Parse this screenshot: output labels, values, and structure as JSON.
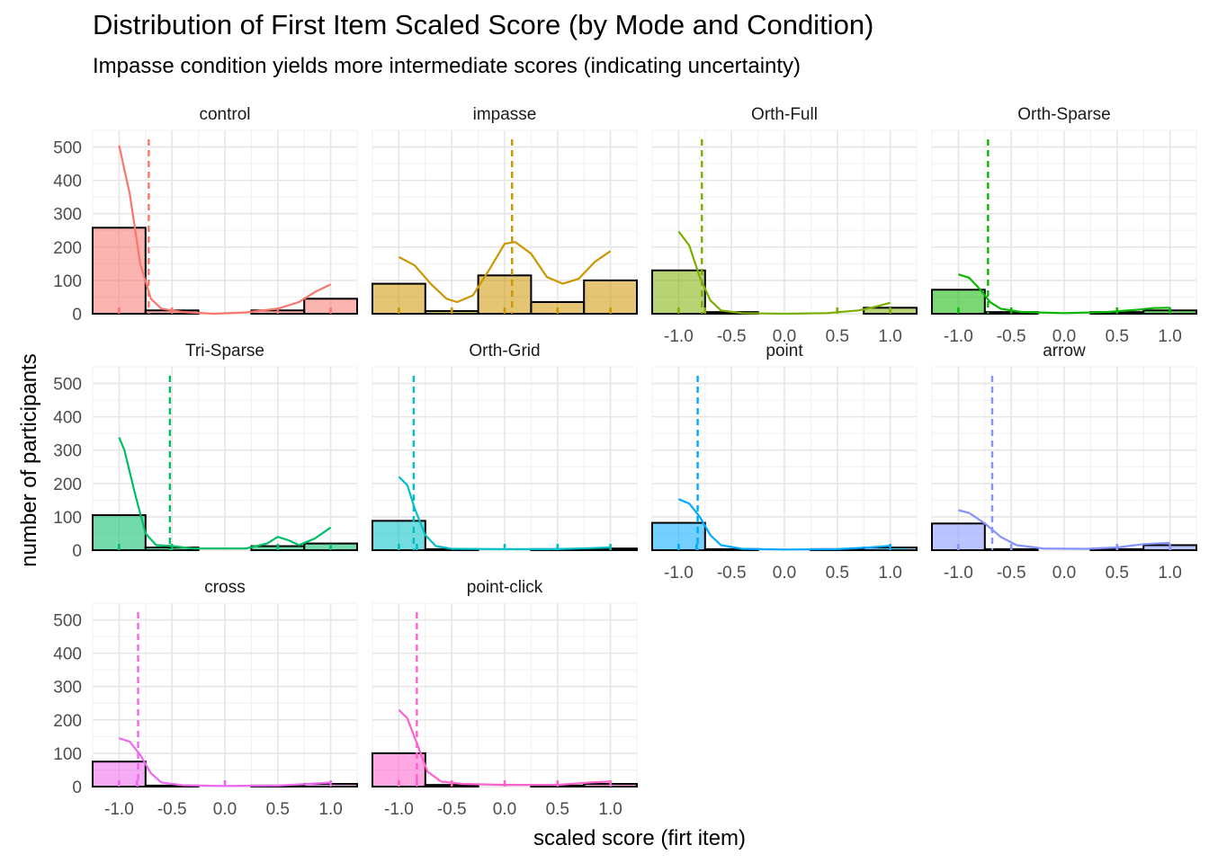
{
  "chart_data": {
    "type": "bar",
    "title": "Distribution of First Item Scaled Score (by Mode and Condition)",
    "subtitle": "Impasse condition yields more intermediate scores (indicating uncertainty)",
    "xlabel": "scaled score (firt item)",
    "ylabel": "number of participants",
    "xlim": [
      -1.25,
      1.25
    ],
    "ylim": [
      0,
      550
    ],
    "x_ticks": [
      -1.0,
      -0.5,
      0.0,
      0.5,
      1.0
    ],
    "x_tick_labels": [
      "-1.0",
      "-0.5",
      "0.0",
      "0.5",
      "1.0"
    ],
    "y_ticks": [
      0,
      100,
      200,
      300,
      400,
      500
    ],
    "y_tick_labels": [
      "0",
      "100",
      "200",
      "300",
      "400",
      "500"
    ],
    "bin_centers": [
      -1.0,
      -0.5,
      0.0,
      0.5,
      1.0
    ],
    "bin_width": 0.5,
    "grid": true,
    "legend": "none",
    "panels": [
      {
        "name": "control",
        "color": "#F8766D",
        "counts": [
          258,
          10,
          0,
          10,
          45
        ],
        "mean": -0.72,
        "density": [
          [
            -1.0,
            505
          ],
          [
            -0.9,
            360
          ],
          [
            -0.8,
            150
          ],
          [
            -0.7,
            45
          ],
          [
            -0.6,
            15
          ],
          [
            -0.4,
            5
          ],
          [
            -0.1,
            0
          ],
          [
            0.2,
            4
          ],
          [
            0.5,
            15
          ],
          [
            0.7,
            35
          ],
          [
            0.85,
            65
          ],
          [
            1.0,
            88
          ]
        ],
        "rug": [
          -1.0,
          -0.5,
          0.5,
          1.0
        ]
      },
      {
        "name": "impasse",
        "color": "#CD9600",
        "counts": [
          90,
          8,
          115,
          35,
          100
        ],
        "mean": 0.07,
        "density": [
          [
            -1.0,
            170
          ],
          [
            -0.85,
            145
          ],
          [
            -0.7,
            90
          ],
          [
            -0.55,
            45
          ],
          [
            -0.45,
            35
          ],
          [
            -0.3,
            55
          ],
          [
            -0.15,
            130
          ],
          [
            0.0,
            210
          ],
          [
            0.1,
            215
          ],
          [
            0.25,
            180
          ],
          [
            0.4,
            110
          ],
          [
            0.55,
            90
          ],
          [
            0.7,
            105
          ],
          [
            0.85,
            155
          ],
          [
            1.0,
            188
          ]
        ],
        "rug": [
          -1.0,
          -0.5,
          0.0,
          0.5,
          1.0
        ]
      },
      {
        "name": "Orth-Full",
        "color": "#7CAE00",
        "counts": [
          130,
          5,
          0,
          0,
          18
        ],
        "mean": -0.78,
        "density": [
          [
            -1.0,
            247
          ],
          [
            -0.9,
            205
          ],
          [
            -0.8,
            110
          ],
          [
            -0.7,
            40
          ],
          [
            -0.6,
            10
          ],
          [
            -0.4,
            2
          ],
          [
            0.0,
            0
          ],
          [
            0.4,
            2
          ],
          [
            0.7,
            10
          ],
          [
            0.85,
            20
          ],
          [
            1.0,
            33
          ]
        ],
        "rug": [
          -1.0,
          -0.75,
          0.5,
          1.0
        ]
      },
      {
        "name": "Orth-Sparse",
        "color": "#0CB702",
        "counts": [
          72,
          5,
          0,
          5,
          10
        ],
        "mean": -0.72,
        "density": [
          [
            -1.0,
            118
          ],
          [
            -0.9,
            108
          ],
          [
            -0.8,
            75
          ],
          [
            -0.7,
            35
          ],
          [
            -0.6,
            15
          ],
          [
            -0.4,
            5
          ],
          [
            0.0,
            2
          ],
          [
            0.4,
            5
          ],
          [
            0.7,
            12
          ],
          [
            0.85,
            17
          ],
          [
            1.0,
            18
          ]
        ],
        "rug": [
          -1.0,
          -0.5,
          0.5,
          1.0
        ]
      },
      {
        "name": "Tri-Sparse",
        "color": "#00BE67",
        "counts": [
          105,
          8,
          0,
          12,
          20
        ],
        "mean": -0.52,
        "density": [
          [
            -1.0,
            338
          ],
          [
            -0.95,
            300
          ],
          [
            -0.85,
            170
          ],
          [
            -0.75,
            50
          ],
          [
            -0.65,
            15
          ],
          [
            -0.5,
            12
          ],
          [
            -0.3,
            5
          ],
          [
            0.0,
            5
          ],
          [
            0.2,
            5
          ],
          [
            0.4,
            20
          ],
          [
            0.5,
            40
          ],
          [
            0.6,
            30
          ],
          [
            0.7,
            15
          ],
          [
            0.85,
            35
          ],
          [
            1.0,
            68
          ]
        ],
        "rug": [
          -1.0,
          -0.5,
          0.5,
          1.0
        ]
      },
      {
        "name": "Orth-Grid",
        "color": "#00BFC4",
        "counts": [
          88,
          3,
          0,
          3,
          5
        ],
        "mean": -0.86,
        "density": [
          [
            -1.0,
            220
          ],
          [
            -0.92,
            195
          ],
          [
            -0.85,
            125
          ],
          [
            -0.75,
            45
          ],
          [
            -0.65,
            12
          ],
          [
            -0.5,
            4
          ],
          [
            0.0,
            3
          ],
          [
            0.5,
            3
          ],
          [
            0.8,
            6
          ],
          [
            1.0,
            8
          ]
        ],
        "rug": [
          -1.0,
          -0.83,
          0.0,
          0.5,
          1.0
        ]
      },
      {
        "name": "point",
        "color": "#00A9FF",
        "counts": [
          82,
          3,
          0,
          3,
          8
        ],
        "mean": -0.82,
        "density": [
          [
            -1.0,
            153
          ],
          [
            -0.9,
            140
          ],
          [
            -0.8,
            100
          ],
          [
            -0.7,
            45
          ],
          [
            -0.6,
            15
          ],
          [
            -0.4,
            4
          ],
          [
            0.0,
            2
          ],
          [
            0.5,
            3
          ],
          [
            0.8,
            8
          ],
          [
            1.0,
            13
          ]
        ],
        "rug": [
          -1.0,
          -0.83,
          1.0
        ]
      },
      {
        "name": "arrow",
        "color": "#8494FF",
        "counts": [
          80,
          3,
          0,
          3,
          15
        ],
        "mean": -0.68,
        "density": [
          [
            -1.0,
            120
          ],
          [
            -0.9,
            112
          ],
          [
            -0.75,
            80
          ],
          [
            -0.6,
            40
          ],
          [
            -0.45,
            15
          ],
          [
            -0.2,
            5
          ],
          [
            0.2,
            4
          ],
          [
            0.5,
            8
          ],
          [
            0.75,
            18
          ],
          [
            1.0,
            22
          ]
        ],
        "rug": [
          -1.0,
          -0.5,
          0.5,
          1.0
        ]
      },
      {
        "name": "cross",
        "color": "#ED68ED",
        "counts": [
          75,
          3,
          0,
          3,
          8
        ],
        "mean": -0.82,
        "density": [
          [
            -1.0,
            145
          ],
          [
            -0.9,
            135
          ],
          [
            -0.8,
            95
          ],
          [
            -0.7,
            40
          ],
          [
            -0.6,
            12
          ],
          [
            -0.4,
            4
          ],
          [
            0.0,
            2
          ],
          [
            0.5,
            3
          ],
          [
            0.8,
            8
          ],
          [
            1.0,
            12
          ]
        ],
        "rug": [
          -1.0,
          -0.83,
          0.0,
          1.0
        ]
      },
      {
        "name": "point-click",
        "color": "#FF61CC",
        "counts": [
          100,
          5,
          0,
          3,
          8
        ],
        "mean": -0.83,
        "density": [
          [
            -1.0,
            230
          ],
          [
            -0.92,
            205
          ],
          [
            -0.83,
            130
          ],
          [
            -0.73,
            45
          ],
          [
            -0.6,
            15
          ],
          [
            -0.4,
            8
          ],
          [
            0.0,
            5
          ],
          [
            0.5,
            5
          ],
          [
            0.8,
            12
          ],
          [
            1.0,
            15
          ]
        ],
        "rug": [
          -1.0,
          -0.83,
          -0.5,
          0.0,
          0.5,
          1.0
        ]
      }
    ]
  }
}
